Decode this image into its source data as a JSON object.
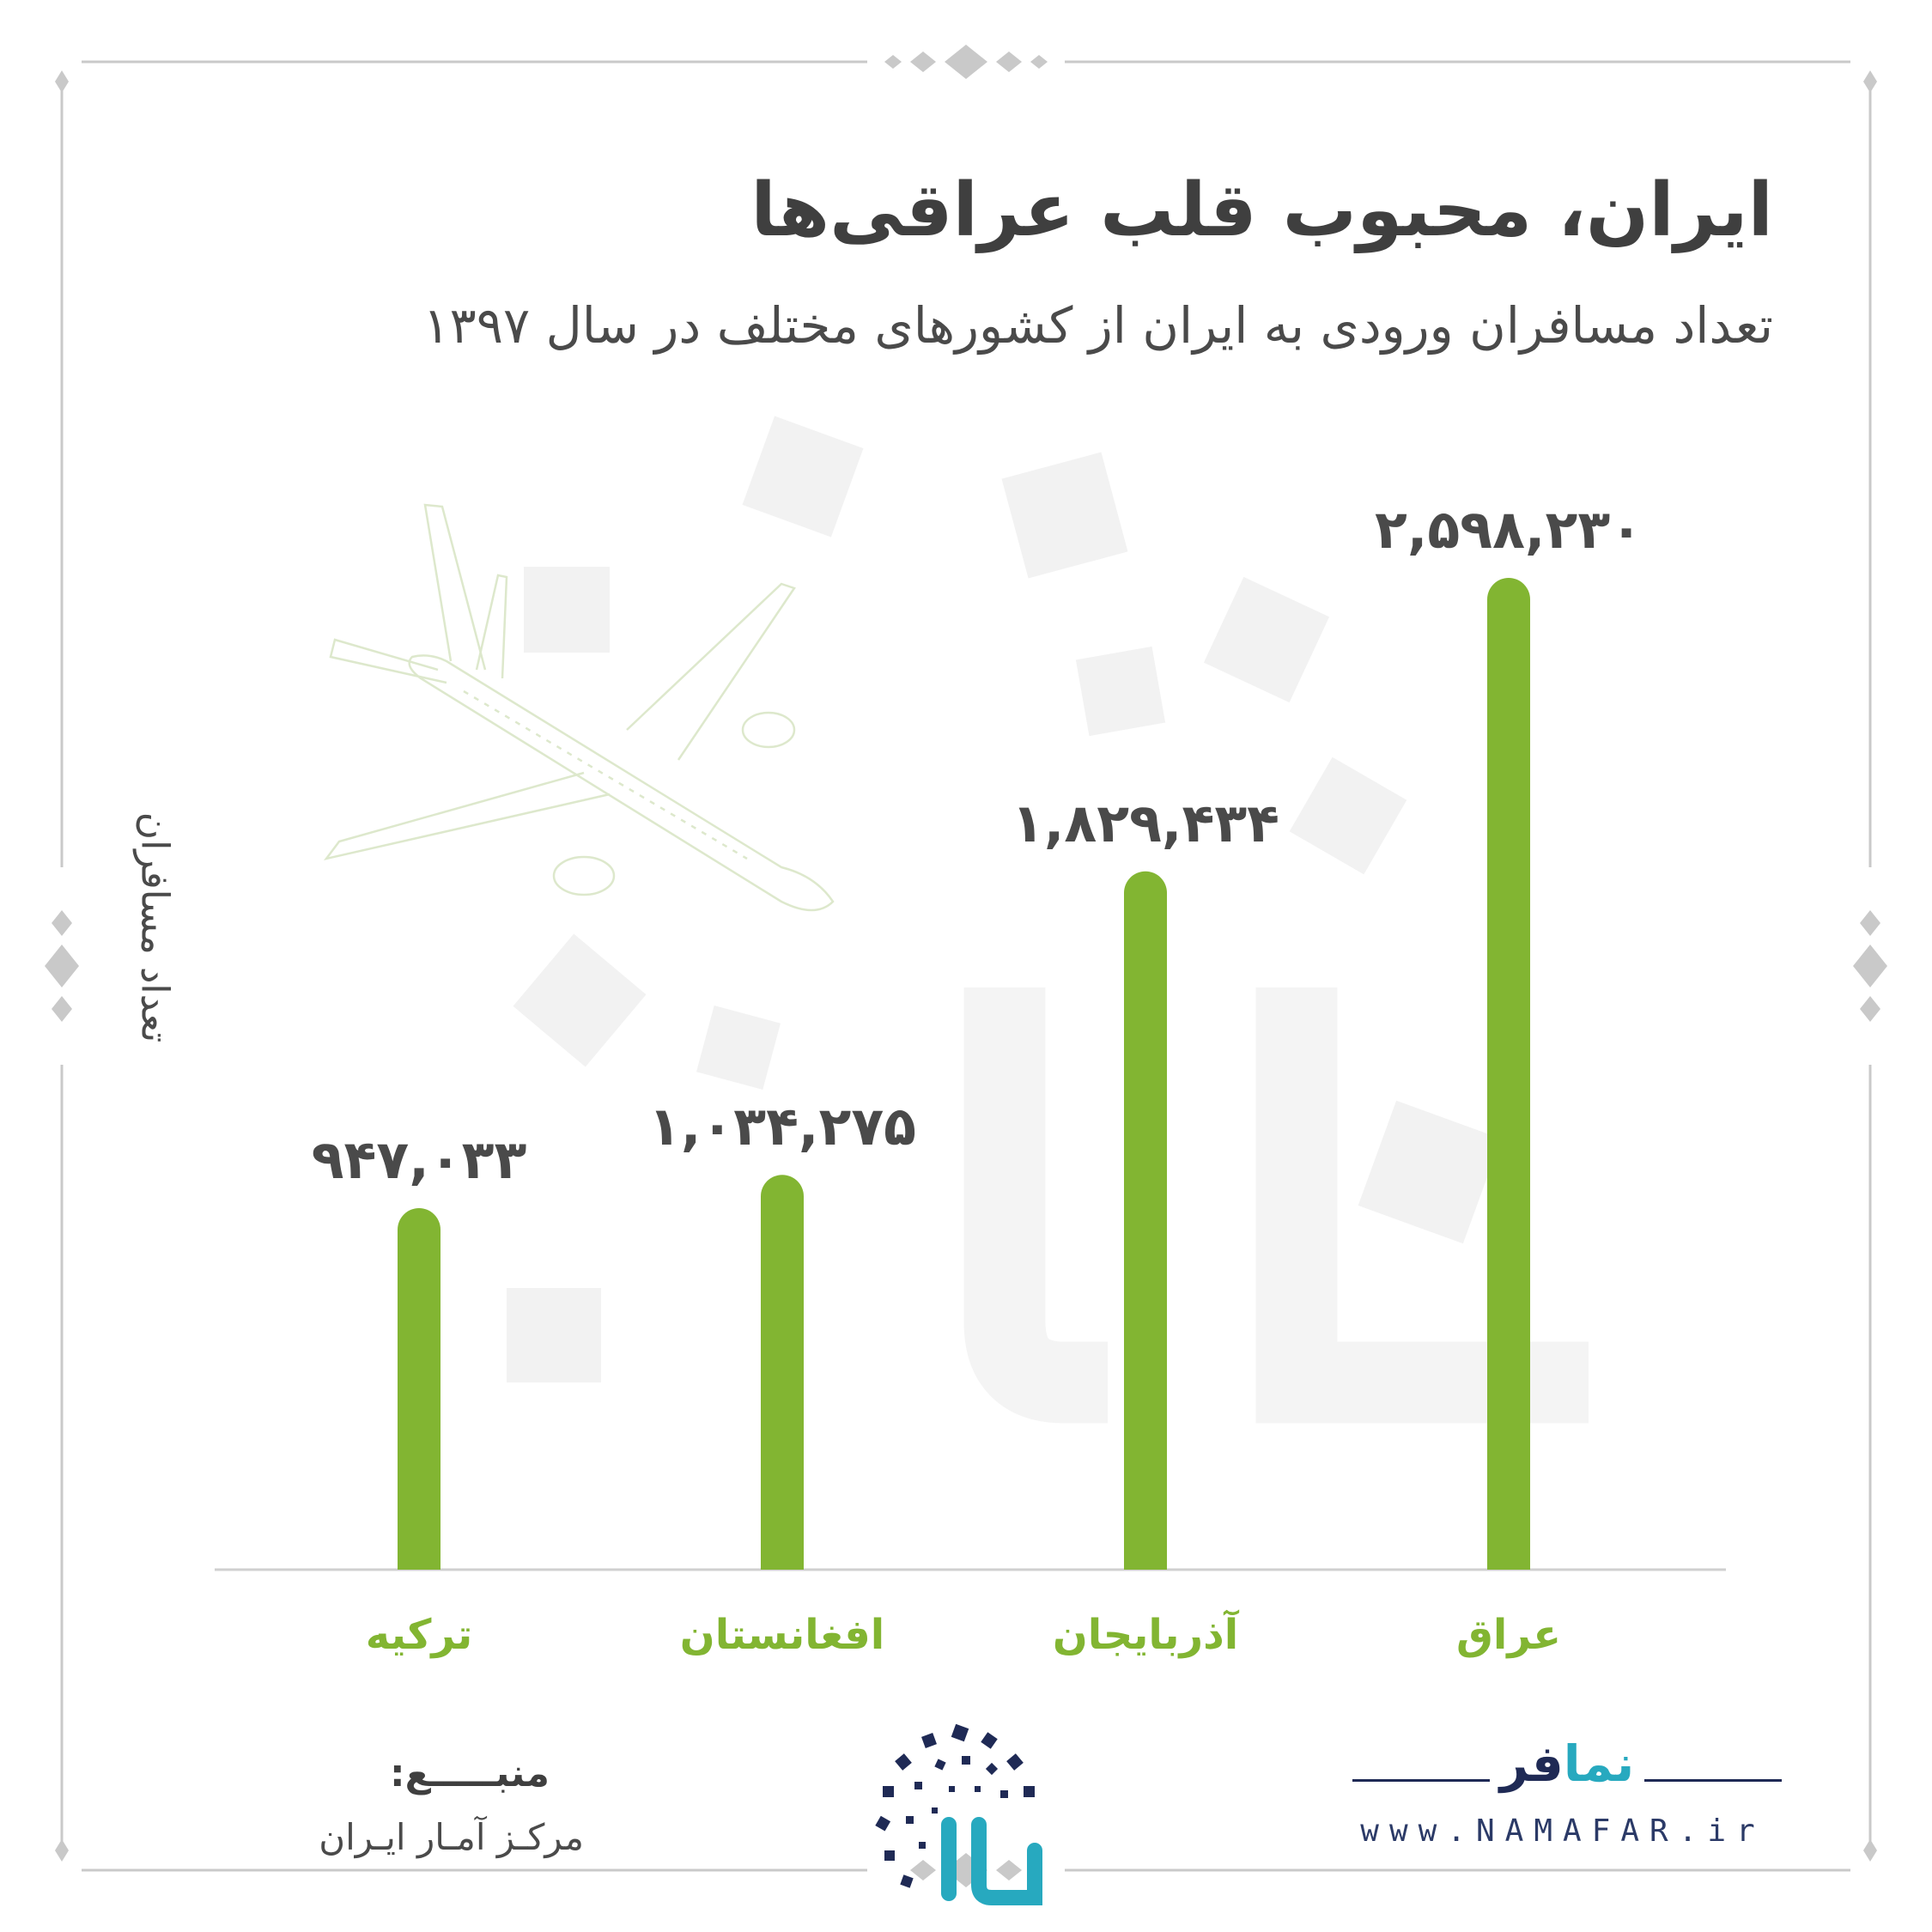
{
  "title": "ایران، محبوب قلب عراقی‌ها",
  "subtitle": "تعداد مسافران ورودی به ایران از کشورهای مختلف در سال ۱۳۹۷",
  "colors": {
    "bar": "#82b532",
    "text": "#4a4a4a",
    "brand_teal": "#27a9bf",
    "brand_navy": "#1f2a55"
  },
  "chart_data": {
    "type": "bar",
    "ylabel": "تعداد مسافران",
    "xlabel": "",
    "categories": [
      "ترکیه",
      "افغانستان",
      "آذربایجان",
      "عراق"
    ],
    "values": [
      947033,
      1034275,
      1829434,
      2598230
    ],
    "value_labels": [
      "۹۴۷,۰۳۳",
      "۱,۰۳۴,۲۷۵",
      "۱,۸۲۹,۴۳۴",
      "۲,۵۹۸,۲۳۰"
    ],
    "ylim": [
      0,
      2650000
    ],
    "grid": false,
    "legend": "none"
  },
  "source": {
    "label": "منبـــــع:",
    "value": "مرکـز آمـار ایـران"
  },
  "brand": {
    "logo_na": "نما",
    "logo_far": "فر",
    "url": "www.NAMAFAR.ir"
  },
  "icons": {
    "illustration": "airplane-icon",
    "center_logo": "namafar-emblem-icon"
  }
}
